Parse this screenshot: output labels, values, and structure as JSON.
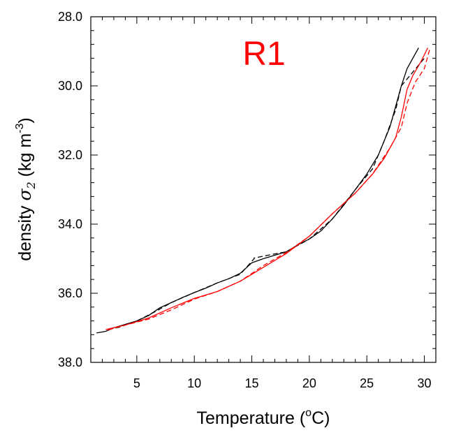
{
  "chart_data": {
    "type": "line",
    "title": "R1",
    "title_color": "#ff0000",
    "xlabel": {
      "prefix": "Temperature (",
      "sup": "o",
      "suffix": "C)"
    },
    "ylabel": {
      "prefix": "density ",
      "symbol": "σ",
      "sub": "2",
      "unit": " (kg m",
      "sup": "-3",
      "close": ")"
    },
    "xlim": [
      1.0,
      31.0
    ],
    "ylim": [
      28.0,
      38.0
    ],
    "y_reversed": true,
    "grid": false,
    "legend": "none",
    "x_ticks": [
      {
        "value": 5,
        "label": "5"
      },
      {
        "value": 10,
        "label": "10"
      },
      {
        "value": 15,
        "label": "15"
      },
      {
        "value": 20,
        "label": "20"
      },
      {
        "value": 25,
        "label": "25"
      },
      {
        "value": 30,
        "label": "30"
      }
    ],
    "y_ticks": [
      {
        "value": 28.0,
        "label": "28.0"
      },
      {
        "value": 30.0,
        "label": "30.0"
      },
      {
        "value": 32.0,
        "label": "32.0"
      },
      {
        "value": 34.0,
        "label": "34.0"
      },
      {
        "value": 36.0,
        "label": "36.0"
      },
      {
        "value": 38.0,
        "label": "38.0"
      }
    ],
    "series": [
      {
        "color": "#000000",
        "dash": "solid",
        "points": [
          [
            1.5,
            37.15
          ],
          [
            2.3,
            37.1
          ],
          [
            3.0,
            37.0
          ],
          [
            4.0,
            36.9
          ],
          [
            5.0,
            36.8
          ],
          [
            6.0,
            36.65
          ],
          [
            7.0,
            36.42
          ],
          [
            8.0,
            36.27
          ],
          [
            9.0,
            36.12
          ],
          [
            10.0,
            35.98
          ],
          [
            11.0,
            35.85
          ],
          [
            12.0,
            35.7
          ],
          [
            13.0,
            35.58
          ],
          [
            14.0,
            35.42
          ],
          [
            15.0,
            35.12
          ],
          [
            16.0,
            35.0
          ],
          [
            17.0,
            34.9
          ],
          [
            18.0,
            34.8
          ],
          [
            19.0,
            34.6
          ],
          [
            20.0,
            34.43
          ],
          [
            21.0,
            34.2
          ],
          [
            22.0,
            33.85
          ],
          [
            23.0,
            33.45
          ],
          [
            24.0,
            33.0
          ],
          [
            25.0,
            32.55
          ],
          [
            26.0,
            32.0
          ],
          [
            27.0,
            31.2
          ],
          [
            28.0,
            30.0
          ],
          [
            28.5,
            29.5
          ],
          [
            29.5,
            28.9
          ]
        ]
      },
      {
        "color": "#000000",
        "dash": "dashed",
        "points": [
          [
            2.5,
            37.05
          ],
          [
            3.5,
            36.98
          ],
          [
            5.0,
            36.8
          ],
          [
            6.5,
            36.55
          ],
          [
            8.0,
            36.27
          ],
          [
            10.0,
            35.98
          ],
          [
            12.0,
            35.7
          ],
          [
            14.0,
            35.45
          ],
          [
            15.2,
            35.0
          ],
          [
            15.2,
            34.98
          ],
          [
            17.0,
            34.86
          ],
          [
            18.0,
            34.8
          ],
          [
            20.0,
            34.43
          ],
          [
            22.0,
            33.85
          ],
          [
            24.0,
            33.0
          ],
          [
            25.5,
            32.4
          ],
          [
            26.5,
            31.6
          ],
          [
            27.5,
            30.7
          ],
          [
            28.0,
            30.0
          ],
          [
            29.0,
            29.6
          ],
          [
            30.0,
            29.2
          ]
        ]
      },
      {
        "color": "#ff0000",
        "dash": "solid",
        "points": [
          [
            2.3,
            37.05
          ],
          [
            4.0,
            36.92
          ],
          [
            6.0,
            36.72
          ],
          [
            8.0,
            36.42
          ],
          [
            10.0,
            36.15
          ],
          [
            12.0,
            35.95
          ],
          [
            14.0,
            35.65
          ],
          [
            16.0,
            35.25
          ],
          [
            18.0,
            34.85
          ],
          [
            20.0,
            34.35
          ],
          [
            22.0,
            33.7
          ],
          [
            24.0,
            33.1
          ],
          [
            25.5,
            32.55
          ],
          [
            26.5,
            32.1
          ],
          [
            27.5,
            31.5
          ],
          [
            28.0,
            30.9
          ],
          [
            28.5,
            30.1
          ],
          [
            29.0,
            29.7
          ],
          [
            29.7,
            29.3
          ],
          [
            30.3,
            28.9
          ]
        ]
      },
      {
        "color": "#ff0000",
        "dash": "dashed",
        "points": [
          [
            2.5,
            37.06
          ],
          [
            4.0,
            36.92
          ],
          [
            6.0,
            36.75
          ],
          [
            8.0,
            36.48
          ],
          [
            10.0,
            36.17
          ],
          [
            12.0,
            35.95
          ],
          [
            14.0,
            35.65
          ],
          [
            16.0,
            35.2
          ],
          [
            18.0,
            34.82
          ],
          [
            20.0,
            34.35
          ],
          [
            22.0,
            33.7
          ],
          [
            24.0,
            33.1
          ],
          [
            25.5,
            32.55
          ],
          [
            27.0,
            31.8
          ],
          [
            28.0,
            31.2
          ],
          [
            28.5,
            30.5
          ],
          [
            29.2,
            29.9
          ],
          [
            30.0,
            29.5
          ],
          [
            30.5,
            28.9
          ]
        ]
      }
    ]
  }
}
